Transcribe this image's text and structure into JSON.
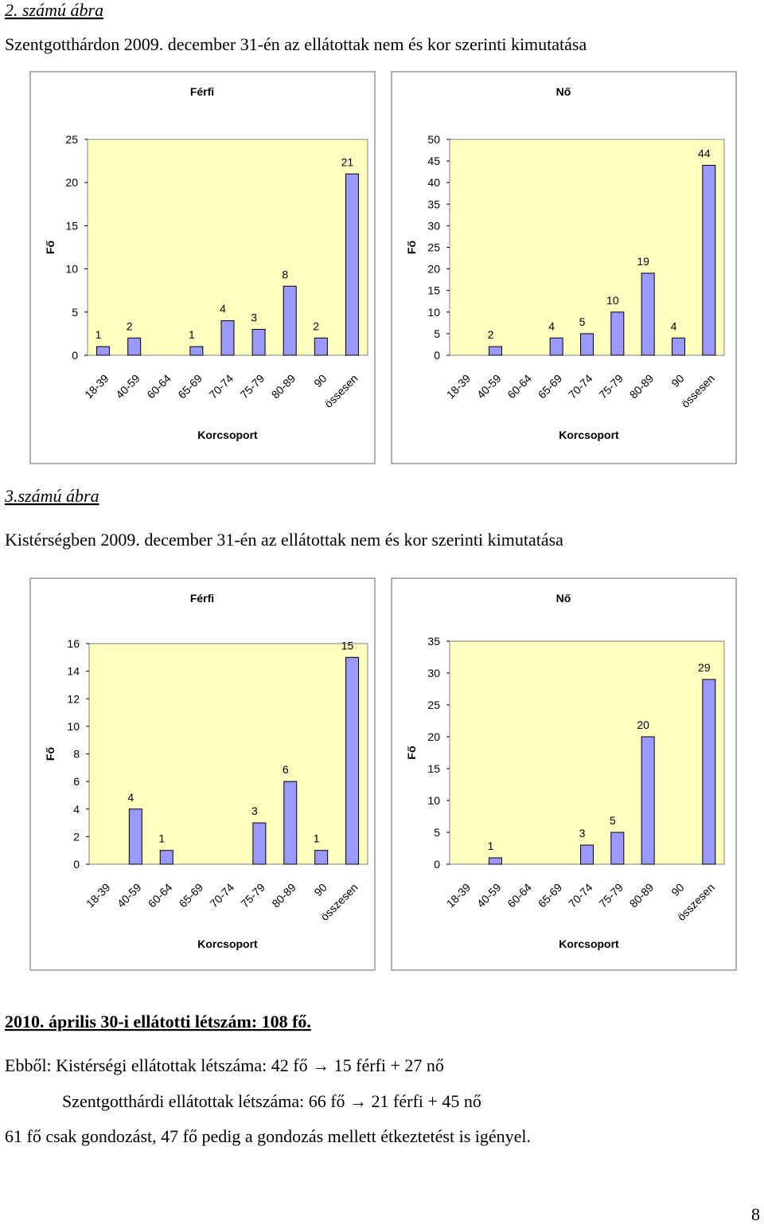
{
  "figure2": {
    "caption": "2. számú ábra",
    "title": "Szentgotthárdon 2009. december 31-én az ellátottak nem és kor szerinti kimutatása"
  },
  "figure3": {
    "caption": "3.számú ábra",
    "title": "Kistérségben 2009. december 31-én az ellátottak nem és kor szerinti kimutatása"
  },
  "summary": {
    "heading": "2010. április 30-i ellátotti létszám: 108 fő.",
    "lines": [
      "Ebből: Kistérségi ellátottak létszáma: 42 fő → 15 férfi + 27 nő",
      "Szentgotthárdi ellátottak létszáma: 66 fő → 21 férfi + 45 nő",
      "61 fő csak gondozást, 47 fő pedig a gondozás mellett étkeztetést is igényel."
    ]
  },
  "page_number": "8",
  "chart_data": [
    {
      "type": "bar",
      "title": "Férfi",
      "y_label": "Fő",
      "x_label": "Korcsoport",
      "color": "#9999ff",
      "background": "#ffffc0",
      "categories": [
        "18-39",
        "40-59",
        "60-64",
        "65-69",
        "70-74",
        "75-79",
        "80-89",
        "90",
        "össesen"
      ],
      "values": [
        1,
        2,
        null,
        1,
        4,
        3,
        8,
        2,
        21
      ],
      "ylim": [
        0,
        25
      ],
      "yticks": [
        0,
        5,
        10,
        15,
        20,
        25
      ]
    },
    {
      "type": "bar",
      "title": "Nő",
      "y_label": "Fő",
      "x_label": "Korcsoport",
      "color": "#9999ff",
      "background": "#ffffc0",
      "categories": [
        "18-39",
        "40-59",
        "60-64",
        "65-69",
        "70-74",
        "75-79",
        "80-89",
        "90",
        "össesen"
      ],
      "values": [
        null,
        2,
        null,
        4,
        5,
        10,
        19,
        4,
        44
      ],
      "ylim": [
        0,
        50
      ],
      "yticks": [
        0,
        5,
        10,
        15,
        20,
        25,
        30,
        35,
        40,
        45,
        50
      ]
    },
    {
      "type": "bar",
      "title": "Férfi",
      "y_label": "Fő",
      "x_label": "Korcsoport",
      "color": "#9999ff",
      "background": "#ffffc0",
      "categories": [
        "18-39",
        "40-59",
        "60-64",
        "65-69",
        "70-74",
        "75-79",
        "80-89",
        "90",
        "összesen"
      ],
      "values": [
        null,
        4,
        1,
        null,
        null,
        3,
        6,
        1,
        15
      ],
      "ylim": [
        0,
        16
      ],
      "yticks": [
        0,
        2,
        4,
        6,
        8,
        10,
        12,
        14,
        16
      ]
    },
    {
      "type": "bar",
      "title": "Nő",
      "y_label": "Fő",
      "x_label": "Korcsoport",
      "color": "#9999ff",
      "background": "#ffffc0",
      "categories": [
        "18-39",
        "40-59",
        "60-64",
        "65-69",
        "70-74",
        "75-79",
        "80-89",
        "90",
        "összesen"
      ],
      "values": [
        null,
        1,
        null,
        null,
        3,
        5,
        20,
        null,
        29
      ],
      "ylim": [
        0,
        35
      ],
      "yticks": [
        0,
        5,
        10,
        15,
        20,
        25,
        30,
        35
      ]
    }
  ]
}
